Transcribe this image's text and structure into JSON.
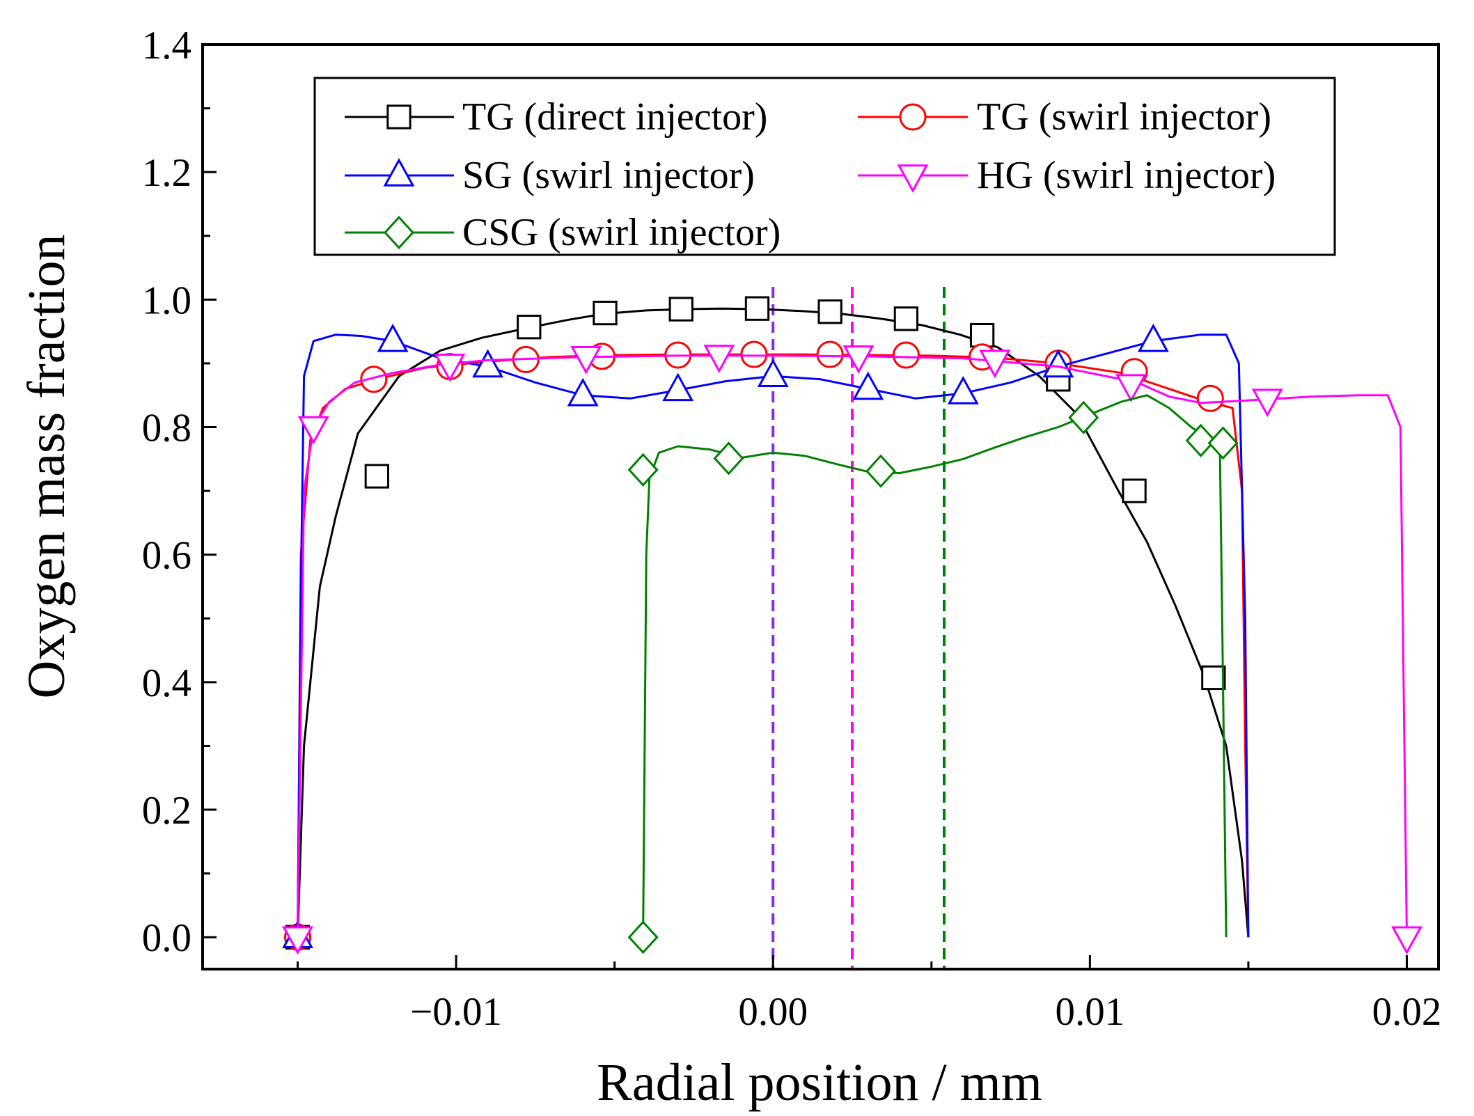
{
  "chart_data": {
    "type": "line",
    "xlabel": "Radial position / mm",
    "ylabel": "Oxygen mass fraction",
    "xlim": [
      -0.018,
      0.021
    ],
    "ylim": [
      -0.05,
      1.4
    ],
    "x_ticks": [
      -0.01,
      0.0,
      0.01,
      0.02
    ],
    "x_tick_labels": [
      "−0.01",
      "0.00",
      "0.01",
      "0.02"
    ],
    "y_ticks": [
      0.0,
      0.2,
      0.4,
      0.6,
      0.8,
      1.0,
      1.2,
      1.4
    ],
    "y_tick_labels": [
      "0.0",
      "0.2",
      "0.4",
      "0.6",
      "0.8",
      "1.0",
      "1.2",
      "1.4"
    ],
    "legend_position": "top",
    "series": [
      {
        "name": "TG (direct injector)",
        "color": "#000000",
        "marker": "square",
        "x": [
          -0.015,
          -0.0148,
          -0.0143,
          -0.0138,
          -0.0131,
          -0.0118,
          -0.0105,
          -0.0092,
          -0.0078,
          -0.0065,
          -0.0053,
          -0.004,
          -0.0028,
          -0.0016,
          -0.0003,
          0.0009,
          0.0021,
          0.0034,
          0.0047,
          0.0059,
          0.0071,
          0.0084,
          0.0096,
          0.0109,
          0.0118,
          0.0127,
          0.0136,
          0.0143,
          0.0148,
          0.015
        ],
        "y": [
          0.0,
          0.3,
          0.55,
          0.66,
          0.79,
          0.88,
          0.92,
          0.94,
          0.955,
          0.968,
          0.978,
          0.983,
          0.985,
          0.986,
          0.985,
          0.982,
          0.978,
          0.97,
          0.96,
          0.945,
          0.925,
          0.88,
          0.82,
          0.7,
          0.62,
          0.52,
          0.41,
          0.3,
          0.12,
          0.0
        ],
        "marker_x": [
          -0.015,
          -0.0125,
          -0.0077,
          -0.0053,
          -0.0029,
          -0.0005,
          0.0018,
          0.0042,
          0.0066,
          0.009,
          0.0114,
          0.0139
        ],
        "marker_y": [
          0.0,
          0.723,
          0.957,
          0.979,
          0.985,
          0.986,
          0.981,
          0.97,
          0.944,
          0.875,
          0.7,
          0.407
        ]
      },
      {
        "name": "TG (swirl injector)",
        "color": "#ff0000",
        "marker": "circle",
        "x": [
          -0.015,
          -0.0149,
          -0.0146,
          -0.0142,
          -0.0135,
          -0.0125,
          -0.011,
          -0.009,
          -0.007,
          -0.005,
          -0.003,
          -0.001,
          0.001,
          0.003,
          0.005,
          0.007,
          0.009,
          0.011,
          0.0125,
          0.0137,
          0.0145,
          0.0148,
          0.0149,
          0.015
        ],
        "y": [
          0.0,
          0.6,
          0.78,
          0.83,
          0.86,
          0.875,
          0.893,
          0.903,
          0.91,
          0.913,
          0.914,
          0.914,
          0.914,
          0.913,
          0.912,
          0.909,
          0.9,
          0.885,
          0.86,
          0.84,
          0.83,
          0.7,
          0.3,
          0.0
        ],
        "marker_x": [
          -0.015,
          -0.0126,
          -0.0102,
          -0.0078,
          -0.0054,
          -0.003,
          -0.0006,
          0.0018,
          0.0042,
          0.0066,
          0.009,
          0.0114,
          0.0138
        ],
        "marker_y": [
          0.0,
          0.875,
          0.895,
          0.906,
          0.911,
          0.913,
          0.914,
          0.914,
          0.913,
          0.91,
          0.9,
          0.887,
          0.845
        ]
      },
      {
        "name": "SG (swirl injector)",
        "color": "#0000ff",
        "marker": "triangle-up",
        "x": [
          -0.015,
          -0.0149,
          -0.0148,
          -0.0145,
          -0.0138,
          -0.013,
          -0.012,
          -0.0105,
          -0.009,
          -0.0075,
          -0.006,
          -0.0045,
          -0.003,
          -0.0015,
          0.0,
          0.0015,
          0.003,
          0.0045,
          0.006,
          0.0075,
          0.009,
          0.0105,
          0.012,
          0.0135,
          0.0143,
          0.0147,
          0.0149,
          0.015
        ],
        "y": [
          0.0,
          0.55,
          0.88,
          0.935,
          0.945,
          0.943,
          0.935,
          0.908,
          0.895,
          0.87,
          0.85,
          0.845,
          0.858,
          0.872,
          0.88,
          0.875,
          0.86,
          0.845,
          0.853,
          0.87,
          0.895,
          0.915,
          0.935,
          0.945,
          0.945,
          0.9,
          0.5,
          0.0
        ],
        "marker_x": [
          -0.015,
          -0.012,
          -0.009,
          -0.006,
          -0.003,
          0.0,
          0.003,
          0.006,
          0.009,
          0.012
        ],
        "marker_y": [
          0.0,
          0.935,
          0.895,
          0.85,
          0.858,
          0.88,
          0.86,
          0.853,
          0.895,
          0.935
        ]
      },
      {
        "name": "HG (swirl injector)",
        "color": "#ff00ff",
        "marker": "triangle-down",
        "x": [
          -0.015,
          -0.0148,
          -0.0145,
          -0.014,
          -0.0132,
          -0.012,
          -0.0105,
          -0.009,
          -0.006,
          -0.003,
          0.0,
          0.003,
          0.006,
          0.009,
          0.0115,
          0.0125,
          0.0135,
          0.015,
          0.017,
          0.0185,
          0.0194,
          0.0198,
          0.0199,
          0.02
        ],
        "y": [
          0.0,
          0.7,
          0.8,
          0.84,
          0.87,
          0.885,
          0.898,
          0.905,
          0.91,
          0.912,
          0.912,
          0.911,
          0.908,
          0.895,
          0.87,
          0.848,
          0.838,
          0.842,
          0.848,
          0.85,
          0.85,
          0.8,
          0.4,
          0.0
        ],
        "marker_x": [
          -0.015,
          -0.0145,
          -0.0102,
          -0.0059,
          -0.0017,
          0.0027,
          0.007,
          0.0113,
          0.0156,
          0.02
        ],
        "marker_y": [
          0.0,
          0.8,
          0.898,
          0.91,
          0.912,
          0.911,
          0.904,
          0.866,
          0.843,
          0.0
        ]
      },
      {
        "name": "CSG (swirl injector)",
        "color": "#008000",
        "marker": "diamond",
        "x": [
          -0.0041,
          -0.004,
          -0.0039,
          -0.0036,
          -0.003,
          -0.002,
          -0.001,
          0.0,
          0.001,
          0.002,
          0.003,
          0.004,
          0.005,
          0.006,
          0.007,
          0.008,
          0.009,
          0.01,
          0.011,
          0.0118,
          0.0125,
          0.0132,
          0.0138,
          0.0141,
          0.0142,
          0.0143
        ],
        "y": [
          0.0,
          0.6,
          0.72,
          0.76,
          0.77,
          0.765,
          0.752,
          0.76,
          0.755,
          0.742,
          0.73,
          0.728,
          0.738,
          0.75,
          0.768,
          0.785,
          0.8,
          0.82,
          0.84,
          0.85,
          0.83,
          0.8,
          0.78,
          0.77,
          0.4,
          0.0
        ],
        "marker_x": [
          -0.0041,
          -0.0041,
          -0.0014,
          0.0034,
          0.0098,
          0.0135,
          0.0142
        ],
        "marker_y": [
          0.0,
          0.733,
          0.751,
          0.731,
          0.815,
          0.779,
          0.775
        ]
      }
    ],
    "vertical_lines": [
      {
        "x": 0.0,
        "color": "#8a2be2",
        "style": "dashed"
      },
      {
        "x": 0.0025,
        "color": "#ff00ff",
        "style": "dashed"
      },
      {
        "x": 0.0054,
        "color": "#008000",
        "style": "dashed"
      }
    ]
  }
}
